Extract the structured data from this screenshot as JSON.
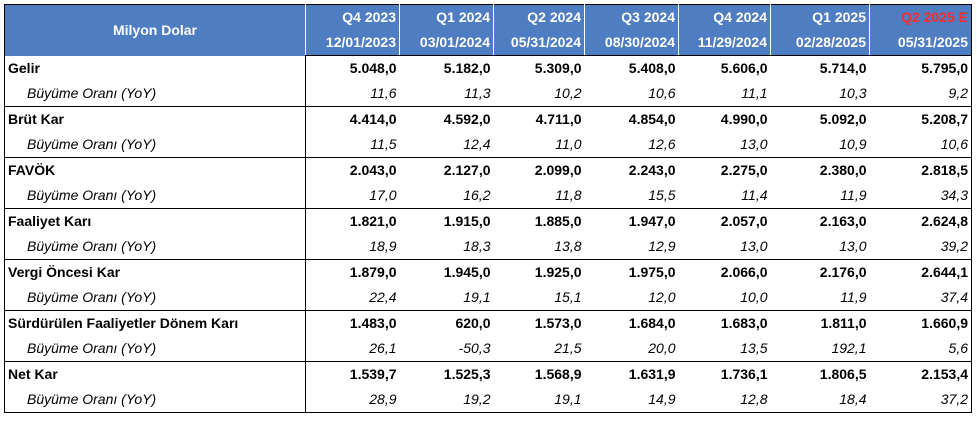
{
  "header": {
    "corner_label": "Milyon Dolar",
    "periods": [
      {
        "quarter": "Q4 2023",
        "date": "12/01/2023",
        "estimate": false
      },
      {
        "quarter": "Q1 2024",
        "date": "03/01/2024",
        "estimate": false
      },
      {
        "quarter": "Q2 2024",
        "date": "05/31/2024",
        "estimate": false
      },
      {
        "quarter": "Q3 2024",
        "date": "08/30/2024",
        "estimate": false
      },
      {
        "quarter": "Q4 2024",
        "date": "11/29/2024",
        "estimate": false
      },
      {
        "quarter": "Q1 2025",
        "date": "02/28/2025",
        "estimate": false
      },
      {
        "quarter": "Q2 2025 E",
        "date": "05/31/2025",
        "estimate": true
      }
    ]
  },
  "colors": {
    "header_bg": "#4f7dc2",
    "header_text": "#ffffff",
    "estimate_text": "#ff2a2a"
  },
  "rows": [
    {
      "label": "Gelir",
      "values": [
        "5.048,0",
        "5.182,0",
        "5.309,0",
        "5.408,0",
        "5.606,0",
        "5.714,0",
        "5.795,0"
      ],
      "growth_label": "Büyüme Oranı (YoY)",
      "growth": [
        "11,6",
        "11,3",
        "10,2",
        "10,6",
        "11,1",
        "10,3",
        "9,2"
      ]
    },
    {
      "label": "Brüt Kar",
      "values": [
        "4.414,0",
        "4.592,0",
        "4.711,0",
        "4.854,0",
        "4.990,0",
        "5.092,0",
        "5.208,7"
      ],
      "growth_label": "Büyüme Oranı (YoY)",
      "growth": [
        "11,5",
        "12,4",
        "11,0",
        "12,6",
        "13,0",
        "10,9",
        "10,6"
      ]
    },
    {
      "label": "FAVÖK",
      "values": [
        "2.043,0",
        "2.127,0",
        "2.099,0",
        "2.243,0",
        "2.275,0",
        "2.380,0",
        "2.818,5"
      ],
      "growth_label": "Büyüme Oranı (YoY)",
      "growth": [
        "17,0",
        "16,2",
        "11,8",
        "15,5",
        "11,4",
        "11,9",
        "34,3"
      ]
    },
    {
      "label": "Faaliyet Karı",
      "values": [
        "1.821,0",
        "1.915,0",
        "1.885,0",
        "1.947,0",
        "2.057,0",
        "2.163,0",
        "2.624,8"
      ],
      "growth_label": "Büyüme Oranı (YoY)",
      "growth": [
        "18,9",
        "18,3",
        "13,8",
        "12,9",
        "13,0",
        "13,0",
        "39,2"
      ]
    },
    {
      "label": "Vergi Öncesi Kar",
      "values": [
        "1.879,0",
        "1.945,0",
        "1.925,0",
        "1.975,0",
        "2.066,0",
        "2.176,0",
        "2.644,1"
      ],
      "growth_label": "Büyüme Oranı (YoY)",
      "growth": [
        "22,4",
        "19,1",
        "15,1",
        "12,0",
        "10,0",
        "11,9",
        "37,4"
      ]
    },
    {
      "label": "Sürdürülen Faaliyetler Dönem Karı",
      "values": [
        "1.483,0",
        "620,0",
        "1.573,0",
        "1.684,0",
        "1.683,0",
        "1.811,0",
        "1.660,9"
      ],
      "growth_label": "Büyüme Oranı (YoY)",
      "growth": [
        "26,1",
        "-50,3",
        "21,5",
        "20,0",
        "13,5",
        "192,1",
        "5,6"
      ]
    },
    {
      "label": "Net Kar",
      "values": [
        "1.539,7",
        "1.525,3",
        "1.568,9",
        "1.631,9",
        "1.736,1",
        "1.806,5",
        "2.153,4"
      ],
      "growth_label": "Büyüme Oranı (YoY)",
      "growth": [
        "28,9",
        "19,2",
        "19,1",
        "14,9",
        "12,8",
        "18,4",
        "37,2"
      ]
    }
  ]
}
